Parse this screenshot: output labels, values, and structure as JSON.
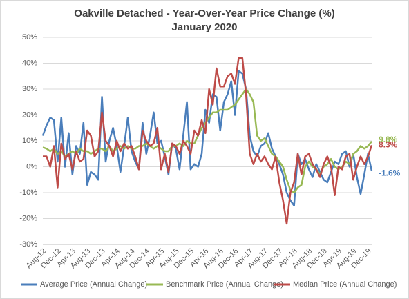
{
  "chart_data": {
    "type": "line",
    "title": "Oakville Detached - Year-Over-Year Price Change (%)",
    "subtitle": "January 2020",
    "categories": [
      "Aug-12",
      null,
      null,
      null,
      "Dec-12",
      null,
      null,
      null,
      "Apr-13",
      null,
      null,
      null,
      "Aug-13",
      null,
      null,
      null,
      "Dec-13",
      null,
      null,
      null,
      "Apr-14",
      null,
      null,
      null,
      "Aug-14",
      null,
      null,
      null,
      "Dec-14",
      null,
      null,
      null,
      "Apr-15",
      null,
      null,
      null,
      "Aug-15",
      null,
      null,
      null,
      "Dec-15",
      null,
      null,
      null,
      "Apr-16",
      null,
      null,
      null,
      "Aug-16",
      null,
      null,
      null,
      "Dec-16",
      null,
      null,
      null,
      "Apr-17",
      null,
      null,
      null,
      "Aug-17",
      null,
      null,
      null,
      "Dec-17",
      null,
      null,
      null,
      "Apr-18",
      null,
      null,
      null,
      "Aug-18",
      null,
      null,
      null,
      "Dec-18",
      null,
      null,
      null,
      "Apr-19",
      null,
      null,
      null,
      "Aug-19",
      null,
      null,
      null,
      "Dec-19",
      null
    ],
    "series": [
      {
        "name": "Average Price (Annual Change)",
        "color": "#4a7ebb",
        "end_label": "-1.6%",
        "values": [
          12,
          16,
          19,
          18,
          2,
          19,
          0,
          13,
          -3,
          8,
          5,
          17,
          -7,
          -2,
          -3,
          -5,
          27,
          2,
          10,
          15,
          8,
          -2,
          8,
          19,
          6,
          2,
          -1,
          17,
          5,
          12,
          21,
          9,
          10,
          4,
          -3,
          9,
          7,
          -1,
          12,
          25,
          -1,
          1,
          0,
          5,
          22,
          17,
          28,
          27,
          14,
          25,
          28,
          33,
          20,
          37,
          36,
          30,
          12,
          6,
          4,
          8,
          9,
          13,
          7,
          4,
          1,
          -3,
          -10,
          -13,
          -15,
          5,
          1,
          3,
          -1,
          -4,
          1,
          -2,
          -5,
          -6,
          -2,
          2,
          1,
          5,
          6,
          0,
          5,
          -4,
          -10.5,
          -3,
          5,
          -1.6
        ]
      },
      {
        "name": "Benchmark Price (Annual Change)",
        "color": "#98b954",
        "end_label": "9.8%",
        "values": [
          7.5,
          7,
          6,
          7,
          5,
          6,
          4,
          5,
          6,
          5,
          7,
          6,
          6,
          5,
          6,
          7,
          7,
          6,
          8,
          6,
          7,
          8,
          7,
          8,
          7,
          7,
          8,
          8,
          9,
          8,
          7,
          8,
          7,
          6,
          6,
          8,
          8,
          9,
          8,
          10,
          9,
          9,
          12,
          15,
          17,
          19,
          21,
          21,
          22,
          22,
          22,
          23,
          24,
          26,
          28,
          30,
          28,
          25,
          12,
          10,
          11,
          8,
          5,
          4,
          2,
          0,
          -5,
          -9,
          -10,
          -8,
          -7,
          0,
          2,
          0,
          -1,
          -3,
          0,
          1,
          3,
          0,
          -1,
          0,
          2,
          1,
          5,
          6,
          8,
          7,
          8,
          9.8
        ]
      },
      {
        "name": "Median Price (Annual Change)",
        "color": "#be4b48",
        "end_label": "8.3%",
        "values": [
          4,
          4,
          0,
          8,
          -8,
          9,
          3,
          5,
          -1,
          6,
          2,
          3,
          14,
          12,
          4,
          6,
          21,
          10,
          8,
          4,
          10,
          6,
          9,
          7,
          8,
          4,
          -1,
          14,
          10,
          8,
          9,
          15,
          -1,
          5,
          -2,
          9,
          8,
          5,
          10,
          8,
          5,
          14,
          12,
          18,
          13,
          30,
          24,
          38,
          31,
          31,
          35,
          36,
          32,
          42,
          42,
          28,
          5,
          1,
          5,
          2,
          4,
          1,
          -1,
          4,
          -6,
          -13,
          -22,
          -10,
          -6,
          5,
          -3,
          4,
          5,
          1,
          -1,
          -4,
          1,
          4,
          0,
          -11,
          0,
          -1,
          4,
          5,
          -5,
          0,
          4,
          1,
          4,
          8.3
        ]
      }
    ],
    "ylim": [
      -30,
      50
    ],
    "yticks": [
      {
        "value": -30,
        "label": "-30%"
      },
      {
        "value": -20,
        "label": "-20%"
      },
      {
        "value": -10,
        "label": "-10%"
      },
      {
        "value": 0,
        "label": "0%"
      },
      {
        "value": 10,
        "label": "10%"
      },
      {
        "value": 20,
        "label": "20%"
      },
      {
        "value": 30,
        "label": "30%"
      },
      {
        "value": 40,
        "label": "40%"
      },
      {
        "value": 50,
        "label": "50%"
      }
    ],
    "grid": true,
    "legend": "bottom"
  }
}
